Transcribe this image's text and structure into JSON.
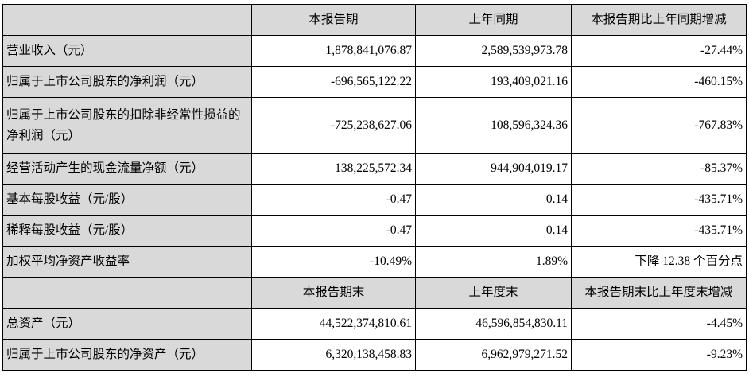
{
  "table": {
    "header": [
      "",
      "本报告期",
      "上年同期",
      "本报告期比上年同期增减"
    ],
    "rows": [
      [
        "营业收入（元）",
        "1,878,841,076.87",
        "2,589,539,973.78",
        "-27.44%"
      ],
      [
        "归属于上市公司股东的净利润（元）",
        "-696,565,122.22",
        "193,409,021.16",
        "-460.15%"
      ],
      [
        "归属于上市公司股东的扣除非经常性损益的净利润（元）",
        "-725,238,627.06",
        "108,596,324.36",
        "-767.83%"
      ],
      [
        "经营活动产生的现金流量净额（元）",
        "138,225,572.34",
        "944,904,019.17",
        "-85.37%"
      ],
      [
        "基本每股收益（元/股）",
        "-0.47",
        "0.14",
        "-435.71%"
      ],
      [
        "稀释每股收益（元/股）",
        "-0.47",
        "0.14",
        "-435.71%"
      ],
      [
        "加权平均净资产收益率",
        "-10.49%",
        "1.89%",
        "下降 12.38 个百分点"
      ]
    ],
    "header2": [
      "",
      "本报告期末",
      "上年度末",
      "本报告期末比上年度末增减"
    ],
    "rows2": [
      [
        "总资产（元）",
        "44,522,374,810.61",
        "46,596,854,830.11",
        "-4.45%"
      ],
      [
        "归属于上市公司股东的净资产（元）",
        "6,320,138,458.83",
        "6,962,979,271.52",
        "-9.23%"
      ]
    ]
  }
}
